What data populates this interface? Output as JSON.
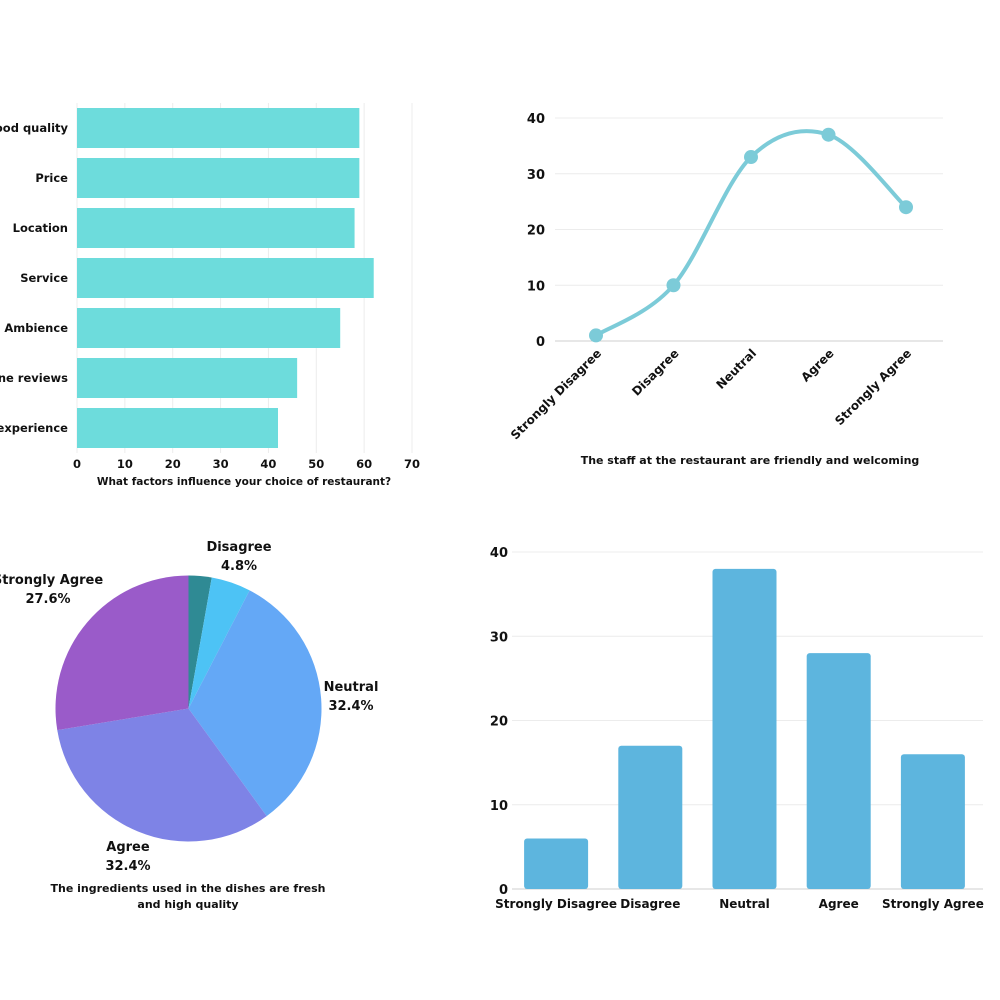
{
  "charts": {
    "factors": {
      "type": "bar",
      "orientation": "horizontal",
      "categories": [
        "Food quality",
        "Price",
        "Location",
        "Service",
        "Ambience",
        "Online reviews",
        "Previous experience"
      ],
      "tick_labels": [
        "Food quality",
        "Price",
        "Location",
        "Service",
        "Ambience",
        "line reviews",
        "s experience"
      ],
      "values": [
        59,
        59,
        58,
        62,
        55,
        46,
        42
      ],
      "xlabel": "What factors influence your choice of restaurant?",
      "xlim": [
        0,
        70
      ],
      "xticks": [
        "0",
        "10",
        "20",
        "30",
        "40",
        "50",
        "60",
        "70"
      ],
      "grid": true,
      "color": "#6ddcdc"
    },
    "staff": {
      "type": "line",
      "categories": [
        "Strongly Disagree",
        "Disagree",
        "Neutral",
        "Agree",
        "Strongly Agree"
      ],
      "values": [
        1,
        10,
        33,
        37,
        24
      ],
      "xlabel": "The staff at the restaurant are friendly and welcoming",
      "ylim": [
        0,
        40
      ],
      "yticks": [
        "0",
        "10",
        "20",
        "30",
        "40"
      ],
      "smooth": true,
      "grid": true,
      "color": "#7ccbd8"
    },
    "ingredients": {
      "type": "pie",
      "title": "The ingredients used in the dishes are fresh and high quality",
      "title_lines": [
        "The ingredients used in the dishes are fresh",
        "and high quality"
      ],
      "slices": [
        {
          "name": "Strongly Disagree",
          "value": 2.8,
          "label": "",
          "pct": "",
          "color": "#2f8a94"
        },
        {
          "name": "Disagree",
          "value": 4.8,
          "label": "Disagree",
          "pct": "4.8%",
          "color": "#4dc3f5"
        },
        {
          "name": "Neutral",
          "value": 32.4,
          "label": "Neutral",
          "pct": "32.4%",
          "color": "#64a8f6"
        },
        {
          "name": "Agree",
          "value": 32.4,
          "label": "Agree",
          "pct": "32.4%",
          "color": "#7e83e6"
        },
        {
          "name": "Strongly Agree",
          "value": 27.6,
          "label": "Strongly Agree",
          "pct": "27.6%",
          "color": "#9a5bc9"
        }
      ]
    },
    "bars": {
      "type": "bar",
      "categories": [
        "Strongly Disagree",
        "Disagree",
        "Neutral",
        "Agree",
        "Strongly Agree"
      ],
      "values": [
        6,
        17,
        38,
        28,
        16
      ],
      "ylim": [
        0,
        40
      ],
      "yticks": [
        "0",
        "10",
        "20",
        "30",
        "40"
      ],
      "grid": true,
      "color": "#5db5de"
    }
  }
}
